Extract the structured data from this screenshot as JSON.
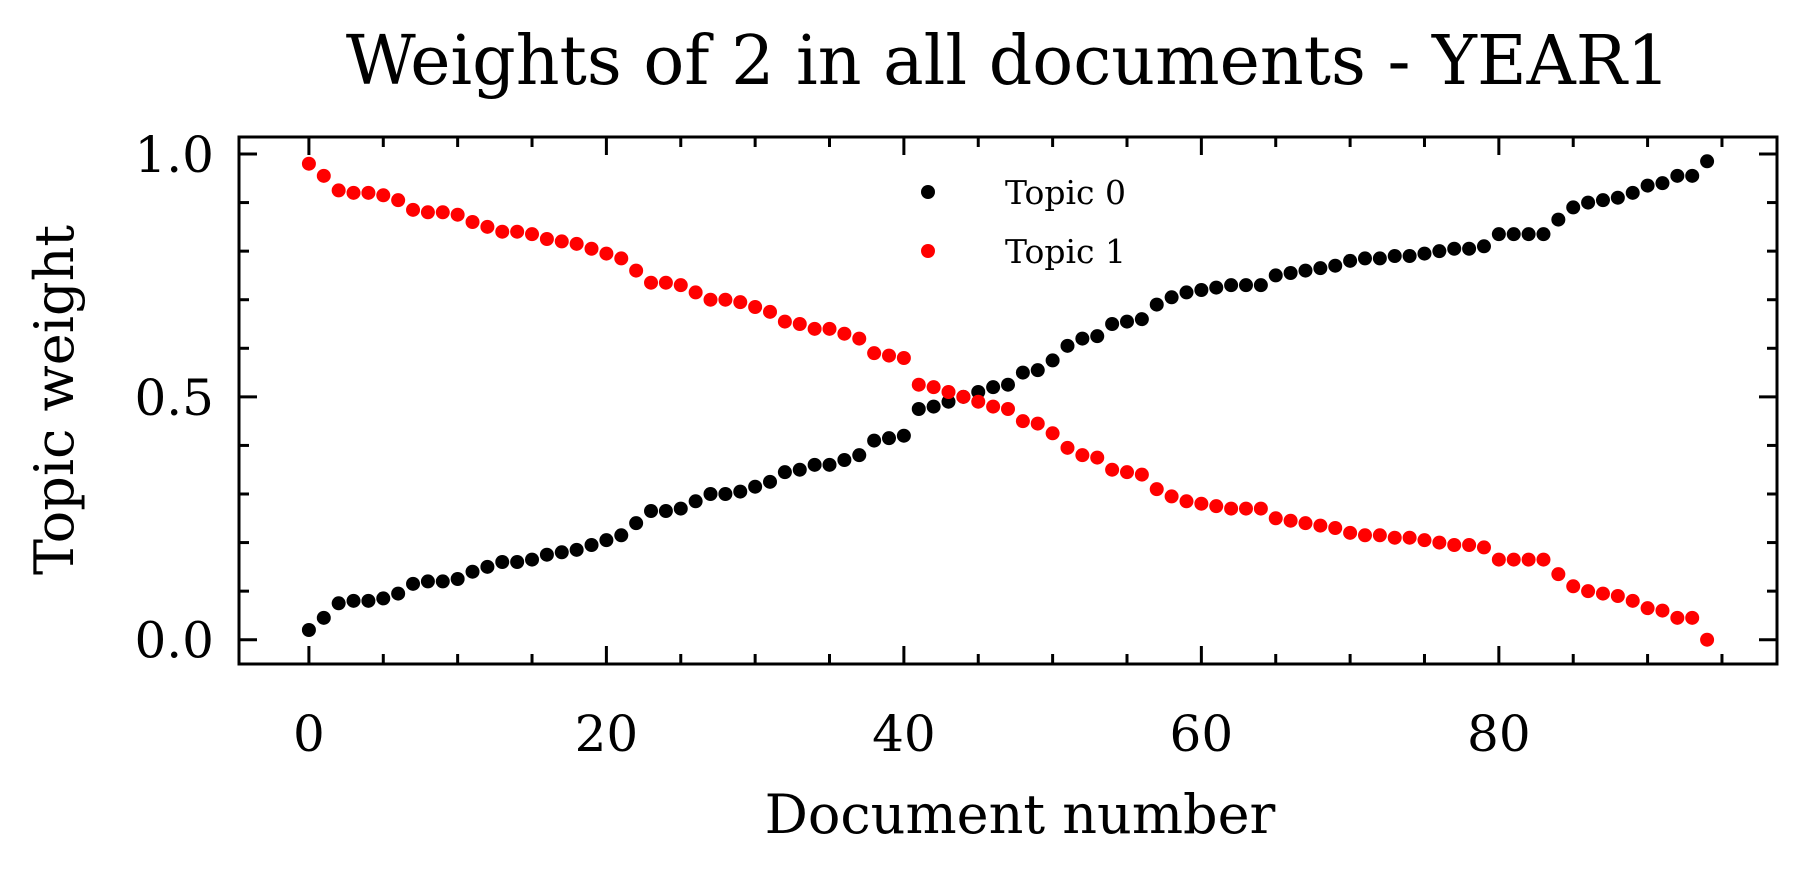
{
  "chart_data": {
    "type": "scatter",
    "title": "Weights of 2 in all documents - YEAR1",
    "xlabel": "Document number",
    "ylabel": "Topic weight",
    "xlim": [
      -4.7,
      98.7
    ],
    "ylim": [
      -0.05,
      1.035
    ],
    "x_ticks": [
      0,
      20,
      40,
      60,
      80
    ],
    "x_tick_labels": [
      "0",
      "20",
      "40",
      "60",
      "80"
    ],
    "y_ticks": [
      0.0,
      0.5,
      1.0
    ],
    "y_tick_labels": [
      "0.0",
      "0.5",
      "1.0"
    ],
    "x_minor_ticks": [
      5,
      10,
      15,
      25,
      30,
      35,
      45,
      50,
      55,
      65,
      70,
      75,
      85,
      90,
      95
    ],
    "y_minor_ticks": [
      0.1,
      0.2,
      0.3,
      0.4,
      0.6,
      0.7,
      0.8,
      0.9
    ],
    "legend_position": "top-center",
    "grid": false,
    "x": [
      0,
      1,
      2,
      3,
      4,
      5,
      6,
      7,
      8,
      9,
      10,
      11,
      12,
      13,
      14,
      15,
      16,
      17,
      18,
      19,
      20,
      21,
      22,
      23,
      24,
      25,
      26,
      27,
      28,
      29,
      30,
      31,
      32,
      33,
      34,
      35,
      36,
      37,
      38,
      39,
      40,
      41,
      42,
      43,
      44,
      45,
      46,
      47,
      48,
      49,
      50,
      51,
      52,
      53,
      54,
      55,
      56,
      57,
      58,
      59,
      60,
      61,
      62,
      63,
      64,
      65,
      66,
      67,
      68,
      69,
      70,
      71,
      72,
      73,
      74,
      75,
      76,
      77,
      78,
      79,
      80,
      81,
      82,
      83,
      84,
      85,
      86,
      87,
      88,
      89,
      90,
      91,
      92,
      93,
      94
    ],
    "series": [
      {
        "name": "Topic 0",
        "color": "#000000",
        "values": [
          0.02,
          0.045,
          0.075,
          0.08,
          0.08,
          0.085,
          0.095,
          0.115,
          0.12,
          0.12,
          0.125,
          0.14,
          0.15,
          0.16,
          0.16,
          0.165,
          0.175,
          0.18,
          0.185,
          0.195,
          0.205,
          0.215,
          0.24,
          0.265,
          0.265,
          0.27,
          0.285,
          0.3,
          0.3,
          0.305,
          0.315,
          0.325,
          0.345,
          0.35,
          0.36,
          0.36,
          0.37,
          0.38,
          0.41,
          0.415,
          0.42,
          0.475,
          0.48,
          0.49,
          0.5,
          0.51,
          0.52,
          0.525,
          0.55,
          0.555,
          0.575,
          0.605,
          0.62,
          0.625,
          0.65,
          0.655,
          0.66,
          0.69,
          0.705,
          0.715,
          0.72,
          0.725,
          0.73,
          0.73,
          0.73,
          0.75,
          0.755,
          0.76,
          0.765,
          0.77,
          0.78,
          0.785,
          0.785,
          0.79,
          0.79,
          0.795,
          0.8,
          0.805,
          0.805,
          0.81,
          0.835,
          0.835,
          0.835,
          0.835,
          0.865,
          0.89,
          0.9,
          0.905,
          0.91,
          0.92,
          0.935,
          0.94,
          0.955,
          0.955,
          0.985
        ]
      },
      {
        "name": "Topic 1",
        "color": "#ff0000",
        "values": [
          0.98,
          0.955,
          0.925,
          0.92,
          0.92,
          0.915,
          0.905,
          0.885,
          0.88,
          0.88,
          0.875,
          0.86,
          0.85,
          0.84,
          0.84,
          0.835,
          0.825,
          0.82,
          0.815,
          0.805,
          0.795,
          0.785,
          0.76,
          0.735,
          0.735,
          0.73,
          0.715,
          0.7,
          0.7,
          0.695,
          0.685,
          0.675,
          0.655,
          0.65,
          0.64,
          0.64,
          0.63,
          0.62,
          0.59,
          0.585,
          0.58,
          0.525,
          0.52,
          0.51,
          0.5,
          0.49,
          0.48,
          0.475,
          0.45,
          0.445,
          0.425,
          0.395,
          0.38,
          0.375,
          0.35,
          0.345,
          0.34,
          0.31,
          0.295,
          0.285,
          0.28,
          0.275,
          0.27,
          0.27,
          0.27,
          0.25,
          0.245,
          0.24,
          0.235,
          0.23,
          0.22,
          0.215,
          0.215,
          0.21,
          0.21,
          0.205,
          0.2,
          0.195,
          0.195,
          0.19,
          0.165,
          0.165,
          0.165,
          0.165,
          0.135,
          0.11,
          0.1,
          0.095,
          0.09,
          0.08,
          0.065,
          0.06,
          0.045,
          0.045,
          0.0
        ]
      }
    ]
  }
}
